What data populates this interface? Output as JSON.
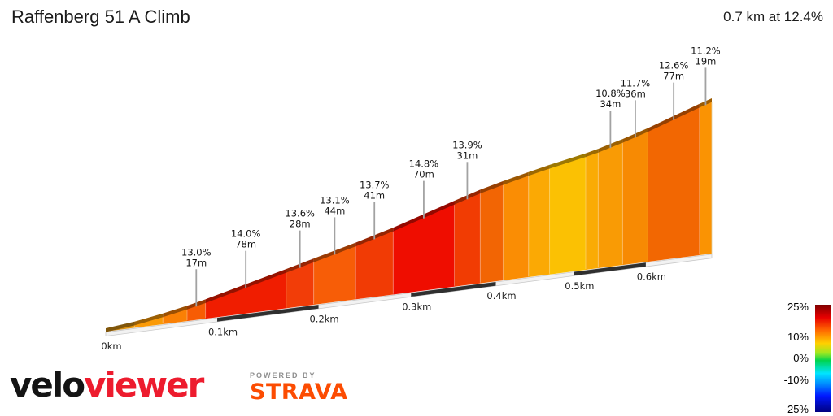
{
  "header": {
    "title": "Raffenberg 51 A Climb",
    "summary": "0.7 km at 12.4%"
  },
  "chart_data": {
    "type": "area",
    "title": "Raffenberg 51 A Climb",
    "total_distance_km": 0.7,
    "average_gradient_pct": 12.4,
    "x_ticks": [
      "0km",
      "0.1km",
      "0.2km",
      "0.3km",
      "0.4km",
      "0.5km",
      "0.6km"
    ],
    "segments": [
      {
        "len_m": 25,
        "grad_pct": null,
        "slope_hint_pct": 6.5,
        "color": "#CF8B12"
      },
      {
        "len_m": 25,
        "grad_pct": null,
        "slope_hint_pct": 10.0,
        "color": "#FA9A07"
      },
      {
        "len_m": 22,
        "grad_pct": null,
        "slope_hint_pct": 11.5,
        "color": "#FA8005"
      },
      {
        "len_m": 17,
        "grad_pct": 13.0,
        "grad_label": "13.0%",
        "len_label": "17m",
        "color": "#F75C04"
      },
      {
        "len_m": 78,
        "grad_pct": 14.0,
        "grad_label": "14.0%",
        "len_label": "78m",
        "color": "#F01D00"
      },
      {
        "len_m": 28,
        "grad_pct": 13.6,
        "grad_label": "13.6%",
        "len_label": "28m",
        "color": "#F23D08"
      },
      {
        "len_m": 44,
        "grad_pct": 13.1,
        "grad_label": "13.1%",
        "len_label": "44m",
        "color": "#F75D07"
      },
      {
        "len_m": 41,
        "grad_pct": 13.7,
        "grad_label": "13.7%",
        "len_label": "41m",
        "color": "#F13B05"
      },
      {
        "len_m": 70,
        "grad_pct": 14.8,
        "grad_label": "14.8%",
        "len_label": "70m",
        "color": "#EF0D00"
      },
      {
        "len_m": 31,
        "grad_pct": 13.9,
        "grad_label": "13.9%",
        "len_label": "31m",
        "color": "#F13C03"
      },
      {
        "len_m": 28,
        "grad_pct": null,
        "slope_hint_pct": 11.0,
        "color": "#F26504"
      },
      {
        "len_m": 32,
        "grad_pct": null,
        "slope_hint_pct": 10.0,
        "color": "#FA8D04"
      },
      {
        "len_m": 27,
        "grad_pct": null,
        "slope_hint_pct": 9.0,
        "color": "#FBA904"
      },
      {
        "len_m": 48,
        "grad_pct": null,
        "slope_hint_pct": 8.0,
        "color": "#FBC103"
      },
      {
        "len_m": 17,
        "grad_pct": null,
        "slope_hint_pct": 9.0,
        "color": "#FAAB05"
      },
      {
        "len_m": 34,
        "grad_pct": 10.8,
        "grad_label": "10.8%",
        "len_label": "34m",
        "color": "#F99B05"
      },
      {
        "len_m": 36,
        "grad_pct": 11.7,
        "grad_label": "11.7%",
        "len_label": "36m",
        "color": "#F78A03"
      },
      {
        "len_m": 77,
        "grad_pct": 12.6,
        "grad_label": "12.6%",
        "len_label": "77m",
        "color": "#F26702"
      },
      {
        "len_m": 19,
        "grad_pct": 11.2,
        "grad_label": "11.2%",
        "len_label": "19m",
        "color": "#FA9303"
      }
    ],
    "legend": {
      "ticks": [
        "25%",
        "10%",
        "0%",
        "-10%",
        "-25%"
      ],
      "min_pct": -25,
      "max_pct": 25,
      "position": "bottom-right",
      "colormap": "jet"
    },
    "grid": false
  },
  "branding": {
    "velo": "velo",
    "viewer": "viewer",
    "powered_by": "POWERED BY",
    "strava": "STRAVA",
    "viewer_color": "#ED1C2E",
    "strava_color": "#FC4C02"
  }
}
